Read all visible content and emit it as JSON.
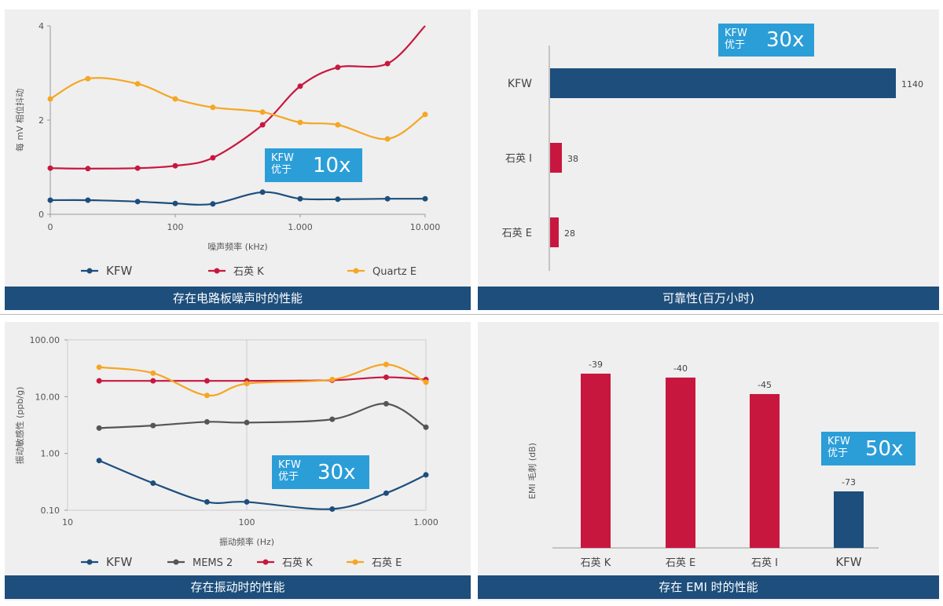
{
  "colors": {
    "kfw": "#1d4e7c",
    "k": "#c8173f",
    "e": "#f5a623",
    "mems": "#555555",
    "badge": "#2b9ed8"
  },
  "noise": {
    "title": "存在电路板噪声时的性能",
    "ylabel": "每 mV 相位抖动",
    "xlabel": "噪声频率 (kHz)",
    "xticks": [
      "0",
      "100",
      "1.000",
      "10.000"
    ],
    "yticks": [
      "0",
      "2",
      "4"
    ],
    "badge": {
      "line1": "KFW",
      "line2": "优于",
      "big": "10x"
    },
    "legend": [
      "KFW",
      "石英 K",
      "Quartz E"
    ]
  },
  "reliability": {
    "title": "可靠性(百万小时)",
    "badge": {
      "line1": "KFW",
      "line2": "优于",
      "big": "30x"
    }
  },
  "vibration": {
    "title": "存在振动时的性能",
    "ylabel": "振动敏感性 (ppb/g)",
    "xlabel": "振动频率 (Hz)",
    "xticks": [
      "10",
      "100",
      "1.000"
    ],
    "yticks": [
      "100.00",
      "10.00",
      "1.00",
      "0.10"
    ],
    "badge": {
      "line1": "KFW",
      "line2": "优于",
      "big": "30x"
    },
    "legend": [
      "KFW",
      "MEMS 2",
      "石英 K",
      "石英 E"
    ]
  },
  "emi": {
    "title": "存在 EMI 时的性能",
    "ylabel": "EMI 毛刺 (dB)",
    "badge": {
      "line1": "KFW",
      "line2": "优于",
      "big": "50x"
    }
  },
  "chart_data": [
    {
      "type": "line",
      "title": "存在电路板噪声时的性能",
      "xlabel": "噪声频率 (kHz)",
      "ylabel": "每 mV 相位抖动",
      "xscale": "log",
      "xlim": [
        10,
        10000
      ],
      "ylim": [
        0,
        4
      ],
      "x": [
        10,
        20,
        50,
        100,
        200,
        500,
        1000,
        2000,
        5000,
        10000
      ],
      "series": [
        {
          "name": "KFW",
          "values": [
            0.3,
            0.3,
            0.27,
            0.23,
            0.22,
            0.47,
            0.33,
            0.32,
            0.33,
            0.33
          ]
        },
        {
          "name": "石英 K",
          "values": [
            0.98,
            0.97,
            0.98,
            1.03,
            1.2,
            1.9,
            2.72,
            3.12,
            3.2,
            4.0
          ]
        },
        {
          "name": "Quartz E",
          "values": [
            2.45,
            2.88,
            2.77,
            2.45,
            2.27,
            2.17,
            1.95,
            1.9,
            1.6,
            2.12
          ]
        }
      ]
    },
    {
      "type": "bar",
      "orientation": "horizontal",
      "title": "可靠性(百万小时)",
      "categories": [
        "KFW",
        "石英 I",
        "石英 E"
      ],
      "values": [
        1140,
        38,
        28
      ],
      "xlim": [
        0,
        1200
      ]
    },
    {
      "type": "line",
      "title": "存在振动时的性能",
      "xlabel": "振动频率 (Hz)",
      "ylabel": "振动敏感性 (ppb/g)",
      "xscale": "log",
      "yscale": "log",
      "xlim": [
        10,
        1000
      ],
      "ylim": [
        0.1,
        100
      ],
      "x": [
        15,
        30,
        60,
        100,
        300,
        600,
        1000
      ],
      "series": [
        {
          "name": "KFW",
          "values": [
            0.75,
            0.3,
            0.14,
            0.14,
            0.105,
            0.2,
            0.42
          ]
        },
        {
          "name": "MEMS 2",
          "values": [
            2.8,
            3.1,
            3.6,
            3.5,
            4.0,
            7.5,
            2.9
          ]
        },
        {
          "name": "石英 K",
          "values": [
            19,
            19,
            19,
            19,
            19.5,
            22,
            20
          ]
        },
        {
          "name": "石英 E",
          "values": [
            33,
            26,
            10.5,
            17,
            20,
            37,
            18
          ]
        }
      ]
    },
    {
      "type": "bar",
      "title": "存在 EMI 时的性能",
      "ylabel": "EMI 毛刺 (dB)",
      "categories": [
        "石英 K",
        "石英 E",
        "石英 I",
        "KFW"
      ],
      "values": [
        -39,
        -40,
        -45,
        -73
      ],
      "ylim": [
        -80,
        0
      ]
    }
  ]
}
